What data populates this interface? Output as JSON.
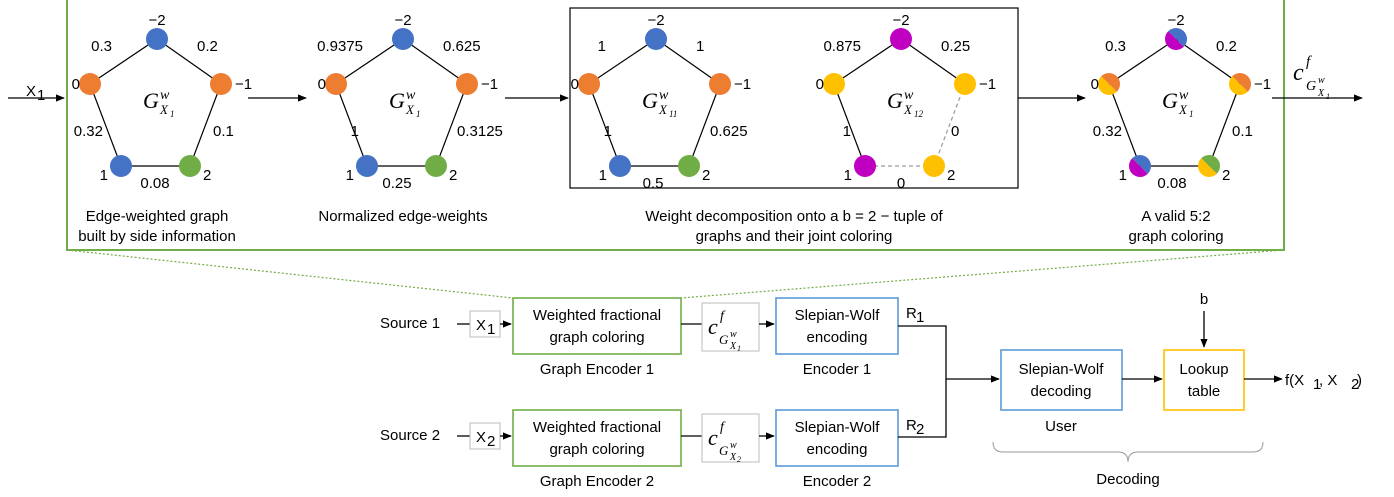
{
  "colors": {
    "blue": "#4472c4",
    "orange": "#ed7d31",
    "green": "#70ad47",
    "magenta": "#c000c0",
    "yellow": "#ffc000",
    "frame_green": "#70ad47",
    "box_blue": "#5b9bd5",
    "box_yellow": "#ffc000"
  },
  "top": {
    "input_label": "X",
    "input_sub": "1",
    "output_c": "c",
    "output_f": "f",
    "output_G": "G",
    "output_w": "w",
    "output_sub": "X",
    "output_subsub": "1",
    "vertex_labels": {
      "top": "−2",
      "right": "−1",
      "left": "0",
      "bl": "1",
      "br": "2"
    },
    "graphs": [
      {
        "name": "graph-original",
        "G": "G",
        "w": "w",
        "sub": "X",
        "subsub": "1",
        "weights": {
          "lt": "0.3",
          "rt": "0.2",
          "lb": "0.32",
          "rb": "0.1",
          "bottom": "0.08"
        },
        "caption1": "Edge-weighted graph",
        "caption2": "built by side information"
      },
      {
        "name": "graph-normalized",
        "G": "G",
        "w": "w",
        "sub": "X",
        "subsub": "1",
        "weights": {
          "lt": "0.9375",
          "rt": "0.625",
          "lb": "1",
          "rb": "0.3125",
          "bottom": "0.25"
        },
        "caption1": "Normalized edge-weights",
        "caption2": ""
      },
      {
        "name": "graph-decomp-1",
        "G": "G",
        "w": "w",
        "sub": "X",
        "subsub": "11",
        "weights": {
          "lt": "1",
          "rt": "1",
          "lb": "1",
          "rb": "0.625",
          "bottom": "0.5"
        }
      },
      {
        "name": "graph-decomp-2",
        "G": "G",
        "w": "w",
        "sub": "X",
        "subsub": "12",
        "weights": {
          "lt": "0.875",
          "rt": "0.25",
          "lb": "1",
          "rb": "0",
          "bottom": "0"
        }
      },
      {
        "name": "graph-coloring",
        "G": "G",
        "w": "w",
        "sub": "X",
        "subsub": "1",
        "weights": {
          "lt": "0.3",
          "rt": "0.2",
          "lb": "0.32",
          "rb": "0.1",
          "bottom": "0.08"
        },
        "caption1": "A valid 5:2",
        "caption2": "graph coloring"
      }
    ],
    "decomp_caption1": "Weight decomposition onto a b = 2 − tuple of",
    "decomp_caption2": "graphs  and their joint coloring"
  },
  "bottom": {
    "source1": "Source 1",
    "source2": "Source 2",
    "x1": "X",
    "x1_sub": "1",
    "x2": "X",
    "x2_sub": "2",
    "enc_line1": "Weighted fractional",
    "enc_line2": "graph  coloring",
    "graph_encoder1": "Graph Encoder 1",
    "graph_encoder2": "Graph Encoder 2",
    "c": "c",
    "f": "f",
    "G": "G",
    "w": "w",
    "csub": "X",
    "csub1": "1",
    "csub2": "2",
    "sw_line1": "Slepian-Wolf",
    "sw_line2": "encoding",
    "encoder1": "Encoder 1",
    "encoder2": "Encoder 2",
    "r1": "R",
    "r1_sub": "1",
    "r2": "R",
    "r2_sub": "2",
    "dec_line1": "Slepian-Wolf",
    "dec_line2": "decoding",
    "user": "User",
    "b": "b",
    "lookup1": "Lookup",
    "lookup2": "table",
    "output": "f(X",
    "output_s1": "1",
    "output_mid": " , X",
    "output_s2": "2",
    "output_end": " )",
    "decoding": "Decoding"
  }
}
